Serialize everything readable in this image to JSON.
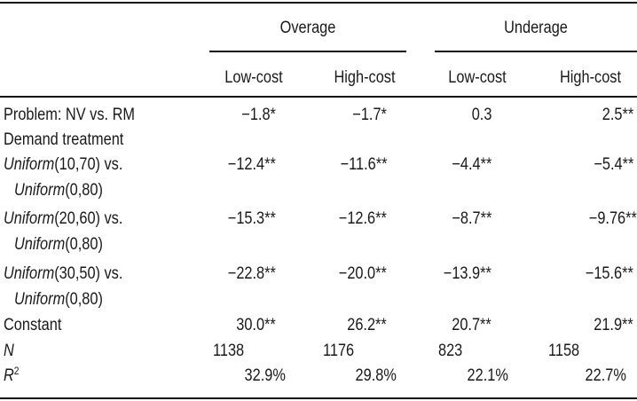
{
  "groups": [
    "Overage",
    "Underage"
  ],
  "columns": [
    "Low-cost",
    "High-cost",
    "Low-cost",
    "High-cost"
  ],
  "rows": {
    "problem": {
      "label": "Problem: NV vs. RM",
      "values": [
        "−1.8*",
        "−1.7*",
        "0.3",
        "2.5**"
      ]
    },
    "demand": {
      "label": "Demand treatment"
    },
    "u1070": {
      "dist": "Uniform",
      "params": "(10,70) vs.",
      "base_dist": "Uniform",
      "base_params": "(0,80)",
      "values": [
        "−12.4**",
        "−11.6**",
        "−4.4**",
        "−5.4**"
      ]
    },
    "u2060": {
      "dist": "Uniform",
      "params": "(20,60) vs.",
      "base_dist": "Uniform",
      "base_params": "(0,80)",
      "values": [
        "−15.3**",
        "−12.6**",
        "−8.7**",
        "−9.76**"
      ]
    },
    "u3050": {
      "dist": "Uniform",
      "params": "(30,50) vs.",
      "base_dist": "Uniform",
      "base_params": "(0,80)",
      "values": [
        "−22.8**",
        "−20.0**",
        "−13.9**",
        "−15.6**"
      ]
    },
    "constant": {
      "label": "Constant",
      "values": [
        "30.0**",
        "26.2**",
        "20.7**",
        "21.9**"
      ]
    },
    "n": {
      "label": "N",
      "values": [
        "1138",
        "1176",
        "823",
        "1158"
      ]
    },
    "r2": {
      "label": "R",
      "sup": "2",
      "values": [
        "32.9%",
        "29.8%",
        "22.1%",
        "22.7%"
      ]
    }
  }
}
